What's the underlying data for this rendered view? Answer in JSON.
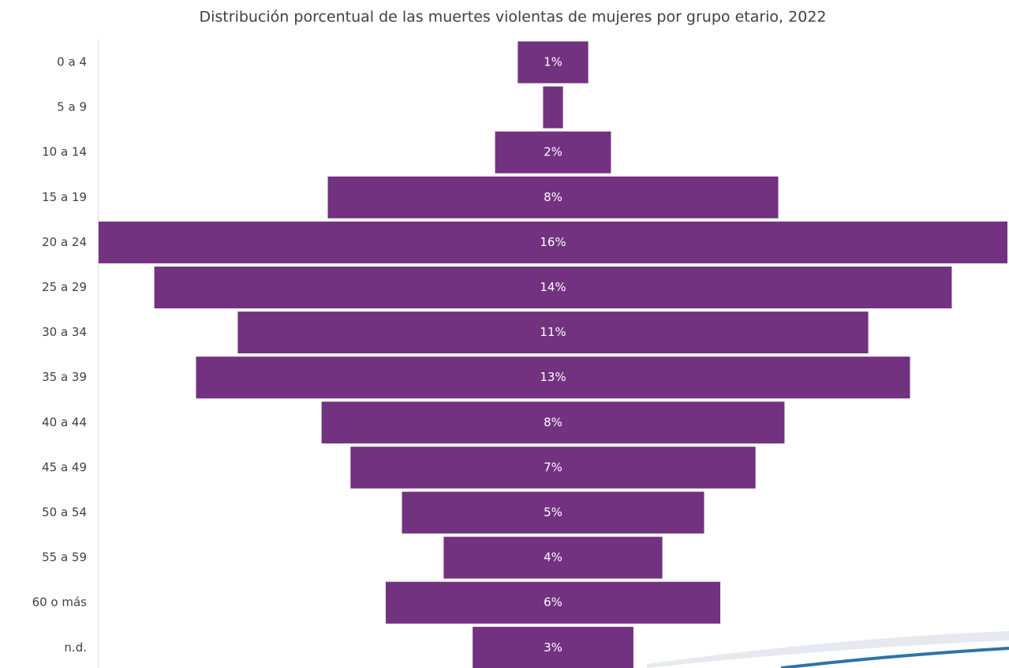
{
  "chart_data": {
    "type": "funnel",
    "title": "Distribución porcentual de las muertes violentas de mujeres por grupo etario, 2022",
    "categories": [
      "0 a 4",
      "5 a 9",
      "10 a 14",
      "15 a 19",
      "20 a 24",
      "25 a 29",
      "30 a 34",
      "35 a 39",
      "40 a 44",
      "45 a 49",
      "50 a 54",
      "55 a 59",
      "60 o más",
      "n.d."
    ],
    "values": [
      1.24,
      0.35,
      2.04,
      7.93,
      16,
      14.04,
      11.1,
      12.57,
      8.15,
      7.13,
      5.32,
      3.85,
      5.89,
      2.83
    ],
    "value_labels": [
      "1%",
      null,
      "2%",
      "8%",
      "16%",
      "14%",
      "11%",
      "13%",
      "8%",
      "7%",
      "5%",
      "4%",
      "6%",
      "3%"
    ],
    "color": "#72327f"
  }
}
